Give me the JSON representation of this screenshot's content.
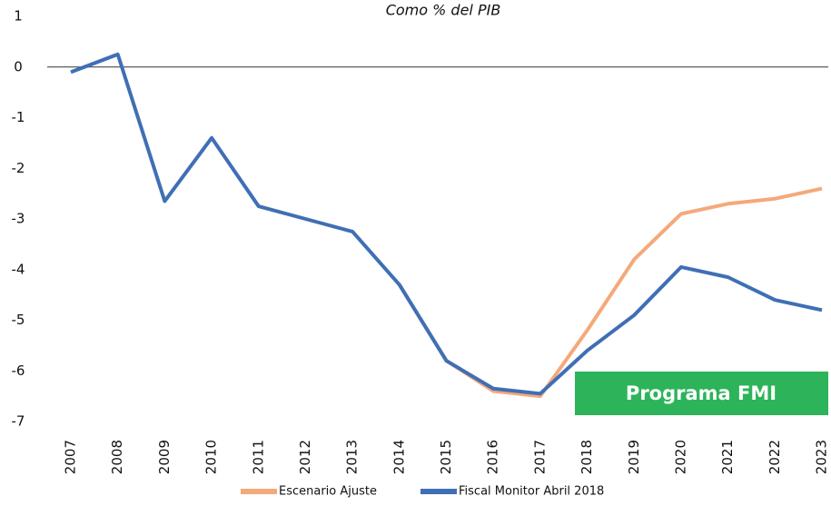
{
  "chart_data": {
    "type": "line",
    "title": "Como % del PIB",
    "categories": [
      "2007",
      "2008",
      "2009",
      "2010",
      "2011",
      "2012",
      "2013",
      "2014",
      "2015",
      "2016",
      "2017",
      "2018",
      "2019",
      "2020",
      "2021",
      "2022",
      "2023"
    ],
    "series": [
      {
        "name": "Escenario Ajuste",
        "color": "#f4a97a",
        "values": [
          null,
          null,
          null,
          null,
          null,
          null,
          null,
          -4.3,
          -5.8,
          -6.4,
          -6.5,
          -5.2,
          -3.8,
          -2.9,
          -2.7,
          -2.6,
          -2.4
        ]
      },
      {
        "name": "Fiscal Monitor Abril 2018",
        "color": "#3f6fb5",
        "values": [
          -0.1,
          0.25,
          -2.65,
          -1.4,
          -2.75,
          -3.0,
          -3.25,
          -4.3,
          -5.8,
          -6.35,
          -6.45,
          -5.6,
          -4.9,
          -3.95,
          -4.15,
          -4.6,
          -4.8
        ]
      }
    ],
    "ylim": [
      -7,
      1
    ],
    "yticks": [
      1,
      0,
      -1,
      -2,
      -3,
      -4,
      -5,
      -6,
      -7
    ],
    "annotation": "Programa FMI",
    "annotation_color": "#2db45a"
  }
}
